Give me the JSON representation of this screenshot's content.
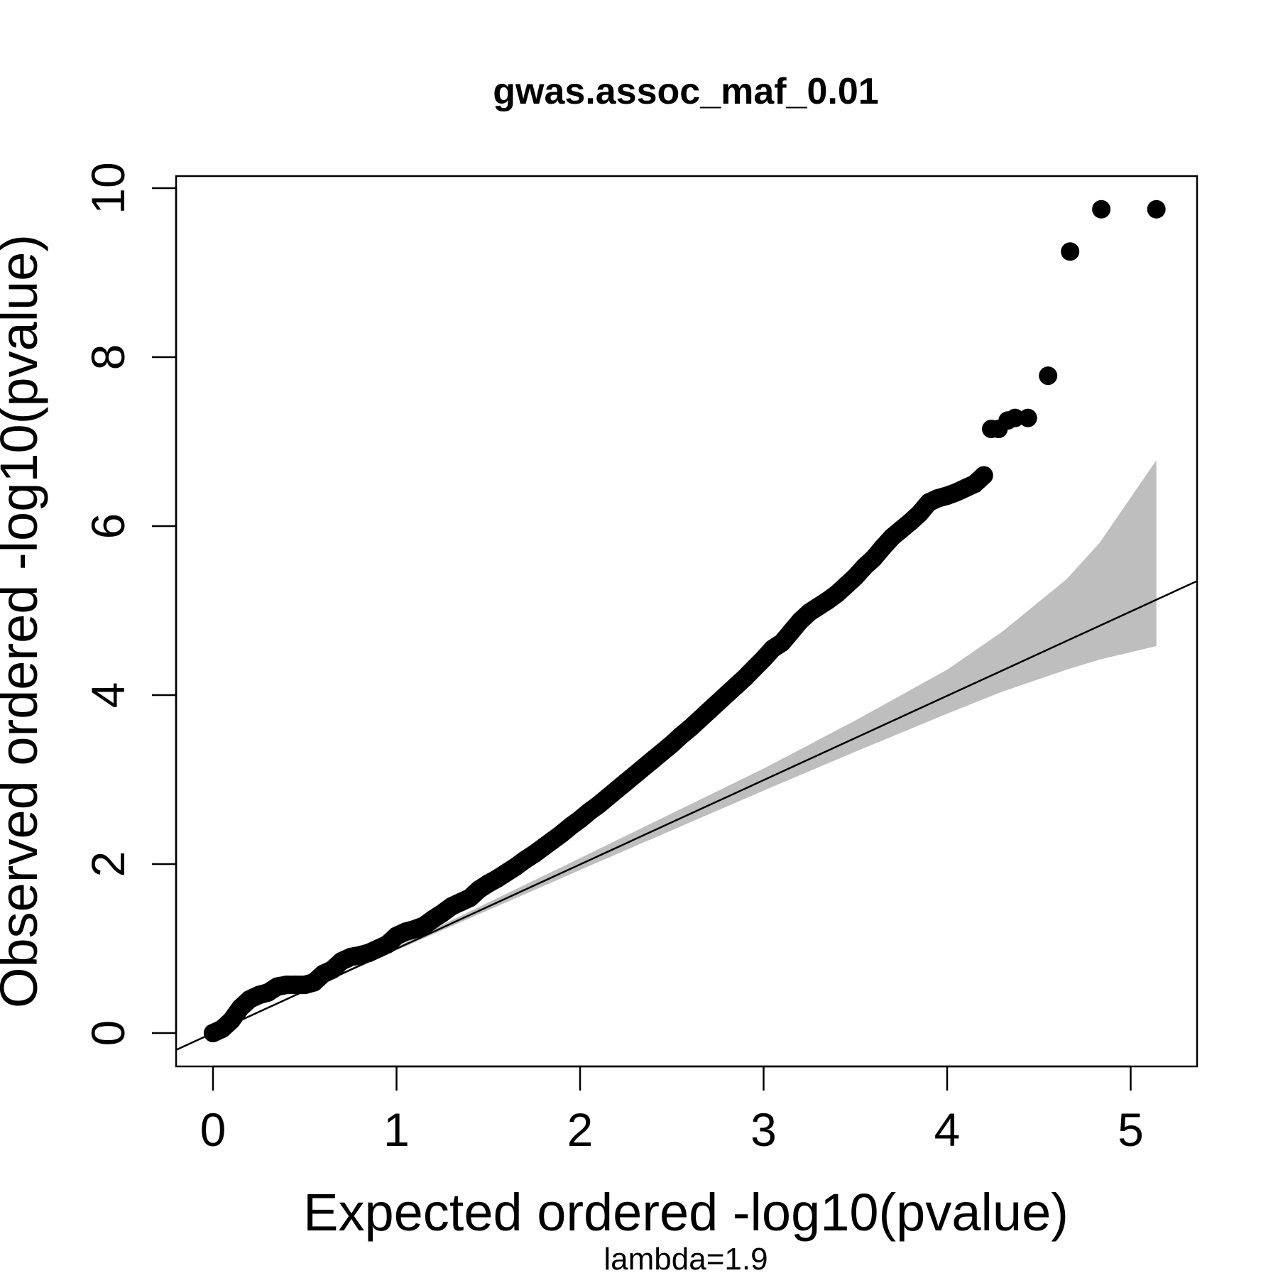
{
  "chart_data": {
    "type": "scatter",
    "title": "gwas.assoc_maf_0.01",
    "xlabel": "Expected ordered -log10(pvalue)",
    "ylabel": "Observed ordered -log10(pvalue)",
    "subtitle": "lambda=1.9",
    "xlim": [
      -0.2,
      5.35
    ],
    "ylim": [
      -0.4,
      10.15
    ],
    "x_ticks": [
      0,
      1,
      2,
      3,
      4,
      5
    ],
    "y_ticks": [
      0,
      2,
      4,
      6,
      8,
      10
    ],
    "x_tick_labels": [
      "0",
      "1",
      "2",
      "3",
      "4",
      "5"
    ],
    "y_tick_labels": [
      "0",
      "2",
      "4",
      "6",
      "8",
      "10"
    ],
    "reference_line": {
      "slope": 1,
      "intercept": 0
    },
    "confidence_band": {
      "x": [
        0,
        1,
        2,
        3,
        3.5,
        4,
        4.3,
        4.65,
        4.83,
        5.14
      ],
      "lower": [
        0,
        0.98,
        1.93,
        2.87,
        3.33,
        3.78,
        4.04,
        4.3,
        4.42,
        4.58
      ],
      "upper": [
        0,
        1.02,
        2.07,
        3.13,
        3.7,
        4.3,
        4.75,
        5.37,
        5.8,
        6.78
      ]
    },
    "points": {
      "x": [
        0,
        0.05,
        0.1,
        0.15,
        0.2,
        0.25,
        0.3,
        0.35,
        0.4,
        0.45,
        0.5,
        0.55,
        0.6,
        0.65,
        0.7,
        0.75,
        0.8,
        0.85,
        0.9,
        0.95,
        1.0,
        1.05,
        1.1,
        1.15,
        1.2,
        1.25,
        1.3,
        1.35,
        1.4,
        1.45,
        1.5,
        1.55,
        1.6,
        1.65,
        1.7,
        1.75,
        1.8,
        1.85,
        1.9,
        1.95,
        2.0,
        2.05,
        2.1,
        2.15,
        2.2,
        2.25,
        2.3,
        2.35,
        2.4,
        2.45,
        2.5,
        2.55,
        2.6,
        2.65,
        2.7,
        2.75,
        2.8,
        2.85,
        2.9,
        2.95,
        3.0,
        3.05,
        3.1,
        3.15,
        3.2,
        3.25,
        3.3,
        3.35,
        3.4,
        3.45,
        3.5,
        3.55,
        3.6,
        3.65,
        3.7,
        3.75,
        3.8,
        3.85,
        3.9,
        3.95,
        4.0,
        4.05,
        4.1,
        4.15,
        4.2,
        4.24,
        4.28,
        4.33,
        4.37,
        4.44,
        4.55,
        4.67,
        4.84,
        5.14
      ],
      "y": [
        0,
        0.05,
        0.15,
        0.3,
        0.4,
        0.45,
        0.48,
        0.55,
        0.57,
        0.57,
        0.57,
        0.6,
        0.7,
        0.75,
        0.85,
        0.9,
        0.92,
        0.95,
        1.0,
        1.05,
        1.15,
        1.2,
        1.23,
        1.27,
        1.35,
        1.42,
        1.5,
        1.55,
        1.6,
        1.7,
        1.77,
        1.83,
        1.9,
        1.97,
        2.05,
        2.12,
        2.2,
        2.28,
        2.36,
        2.45,
        2.53,
        2.62,
        2.7,
        2.79,
        2.88,
        2.97,
        3.06,
        3.15,
        3.24,
        3.33,
        3.42,
        3.52,
        3.61,
        3.71,
        3.81,
        3.91,
        4.01,
        4.11,
        4.21,
        4.32,
        4.43,
        4.55,
        4.62,
        4.75,
        4.88,
        4.98,
        5.05,
        5.12,
        5.2,
        5.3,
        5.4,
        5.52,
        5.62,
        5.75,
        5.87,
        5.96,
        6.05,
        6.15,
        6.28,
        6.33,
        6.36,
        6.4,
        6.45,
        6.5,
        6.6,
        7.15,
        7.15,
        7.25,
        7.28,
        7.28,
        7.78,
        9.25,
        9.75,
        9.75
      ]
    }
  }
}
